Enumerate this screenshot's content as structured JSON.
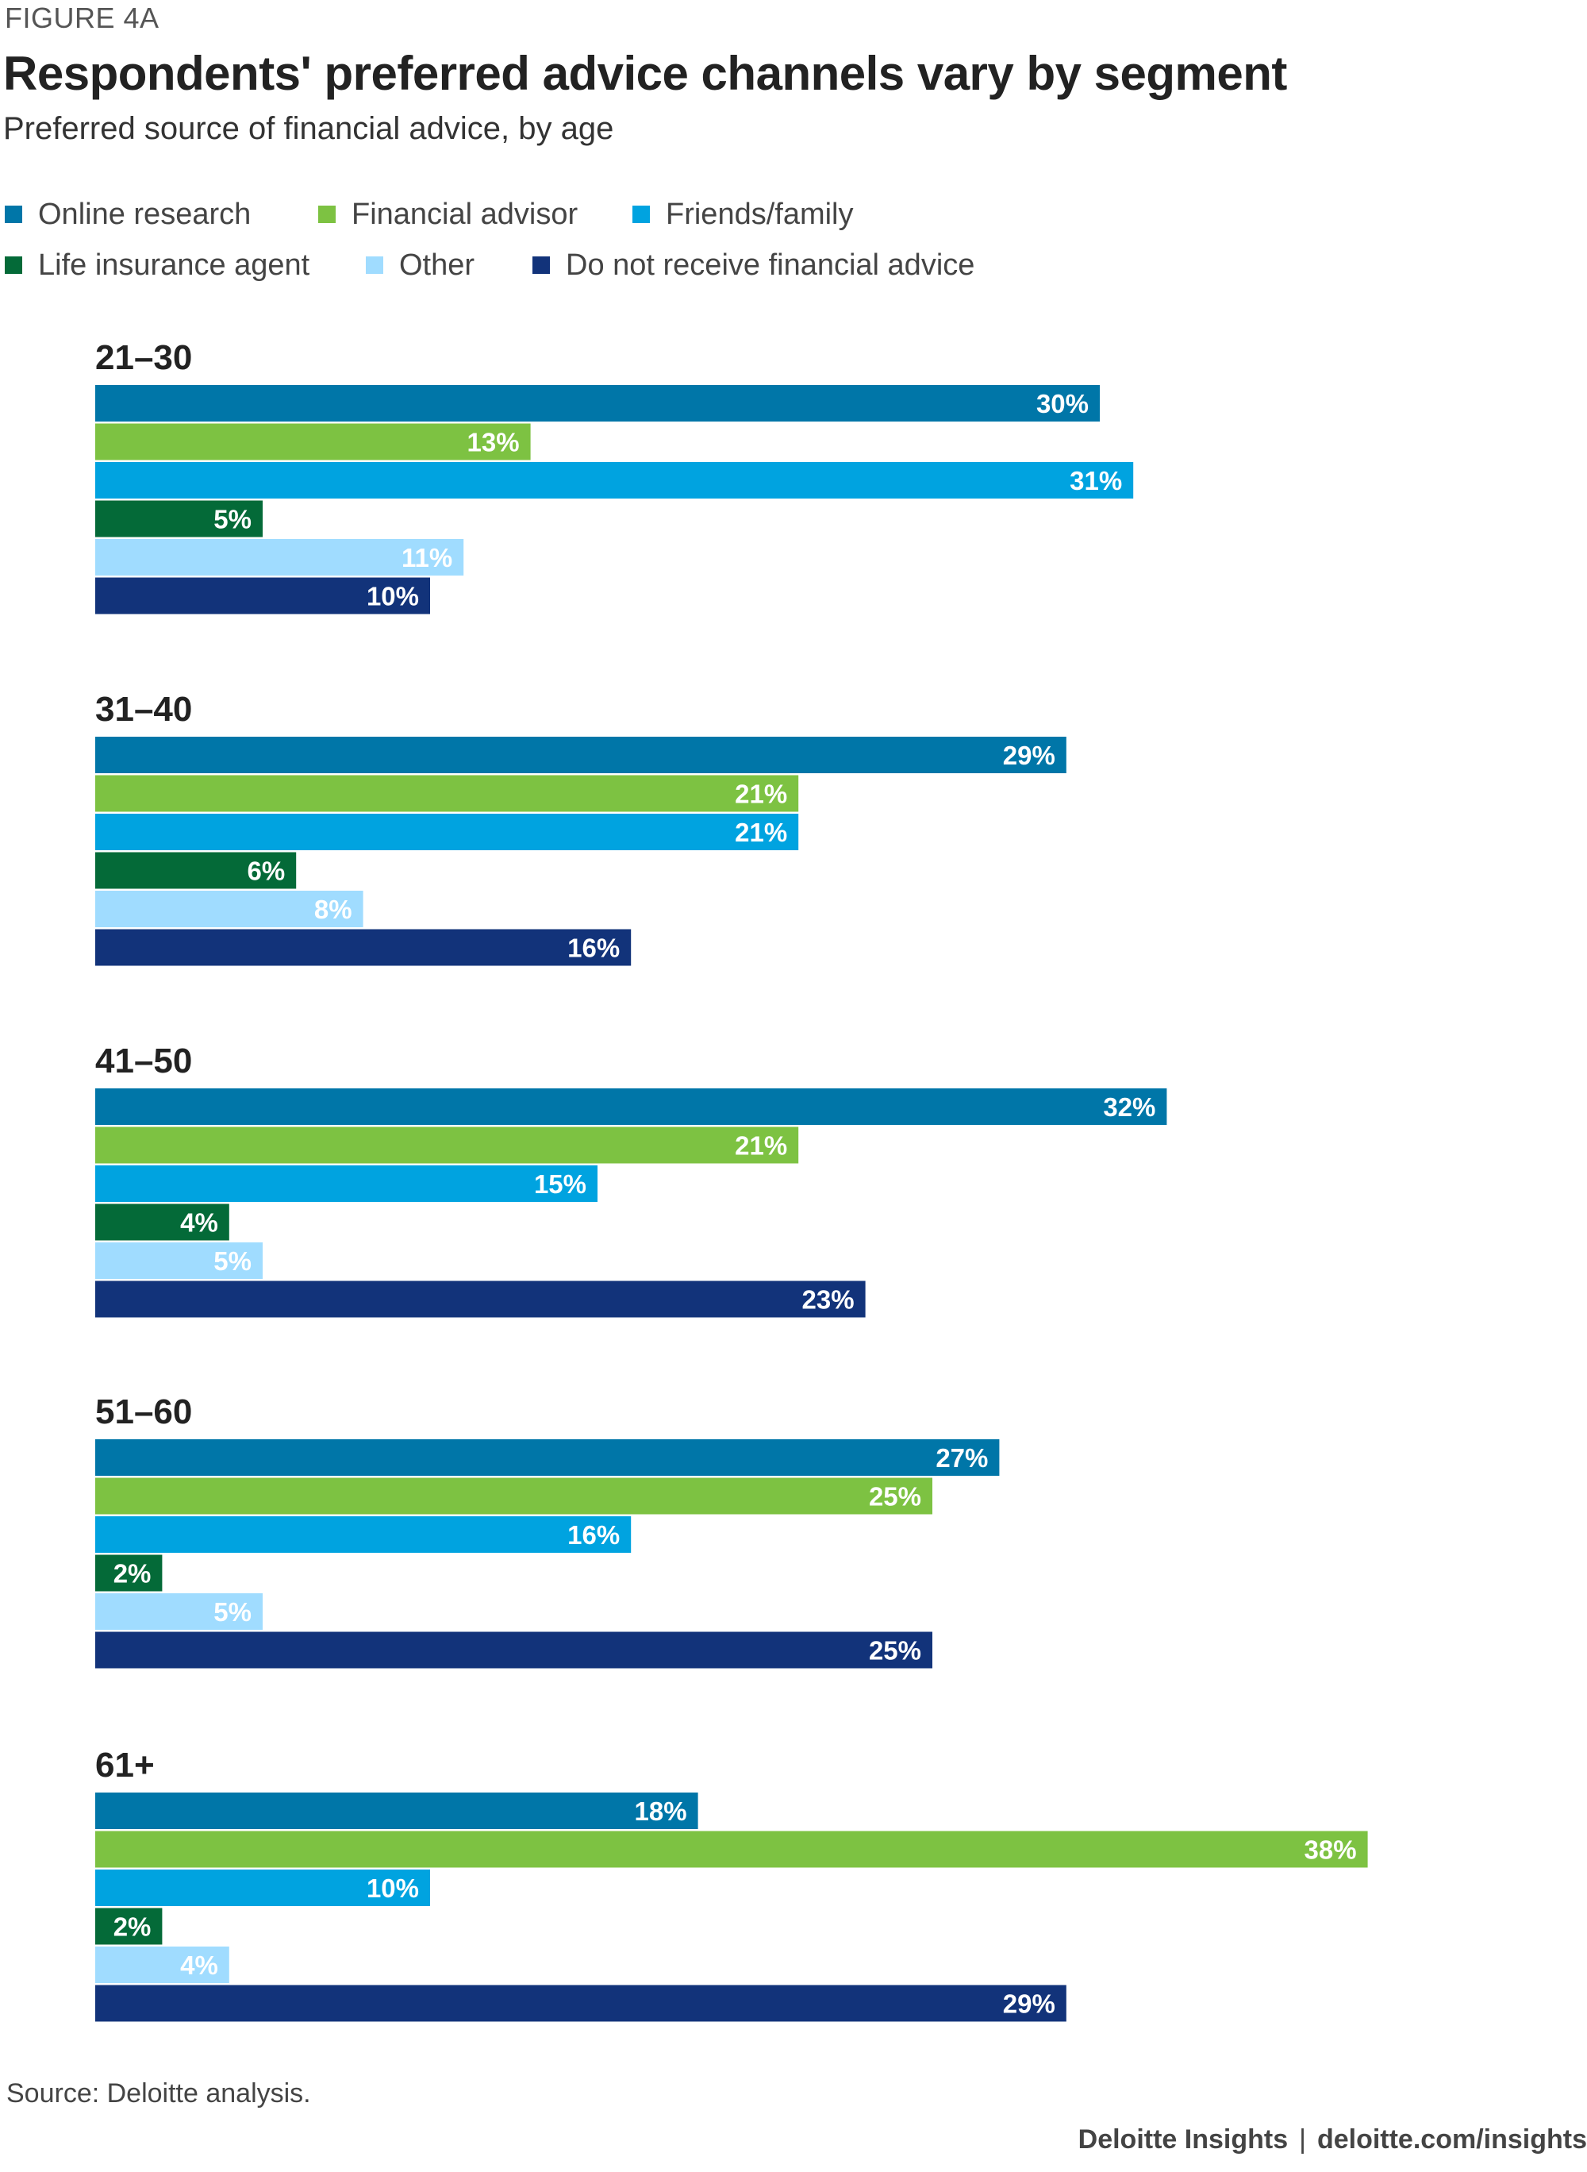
{
  "figure_label": "FIGURE 4A",
  "title": "Respondents' preferred advice channels vary by segment",
  "subtitle": "Preferred source of financial advice, by age",
  "legend": [
    {
      "name": "Online research",
      "color": "#0076A8"
    },
    {
      "name": "Financial advisor",
      "color": "#7DC242"
    },
    {
      "name": "Friends/family",
      "color": "#00A3E0"
    },
    {
      "name": "Life insurance agent",
      "color": "#046A38"
    },
    {
      "name": "Other",
      "color": "#A0DCFF"
    },
    {
      "name": "Do not receive financial advice",
      "color": "#12337A"
    }
  ],
  "chart_data": {
    "type": "bar",
    "orientation": "horizontal",
    "unit": "%",
    "categories": [
      "21–30",
      "31–40",
      "41–50",
      "51–60",
      "61+"
    ],
    "series": [
      {
        "name": "Online research",
        "color": "#0076A8",
        "values": [
          30,
          29,
          32,
          27,
          18
        ]
      },
      {
        "name": "Financial advisor",
        "color": "#7DC242",
        "values": [
          13,
          21,
          21,
          25,
          38
        ]
      },
      {
        "name": "Friends/family",
        "color": "#00A3E0",
        "values": [
          31,
          21,
          15,
          16,
          10
        ]
      },
      {
        "name": "Life insurance agent",
        "color": "#046A38",
        "values": [
          5,
          6,
          4,
          2,
          2
        ]
      },
      {
        "name": "Other",
        "color": "#A0DCFF",
        "values": [
          11,
          8,
          5,
          5,
          4
        ]
      },
      {
        "name": "Do not receive financial advice",
        "color": "#12337A",
        "values": [
          10,
          16,
          23,
          25,
          29
        ]
      }
    ],
    "xlim": [
      0,
      38
    ],
    "grid": false,
    "legend_position": "top-left"
  },
  "footer": {
    "source": "Source: Deloitte analysis.",
    "brand": "Deloitte Insights",
    "separator": "|",
    "site": "deloitte.com/insights"
  }
}
